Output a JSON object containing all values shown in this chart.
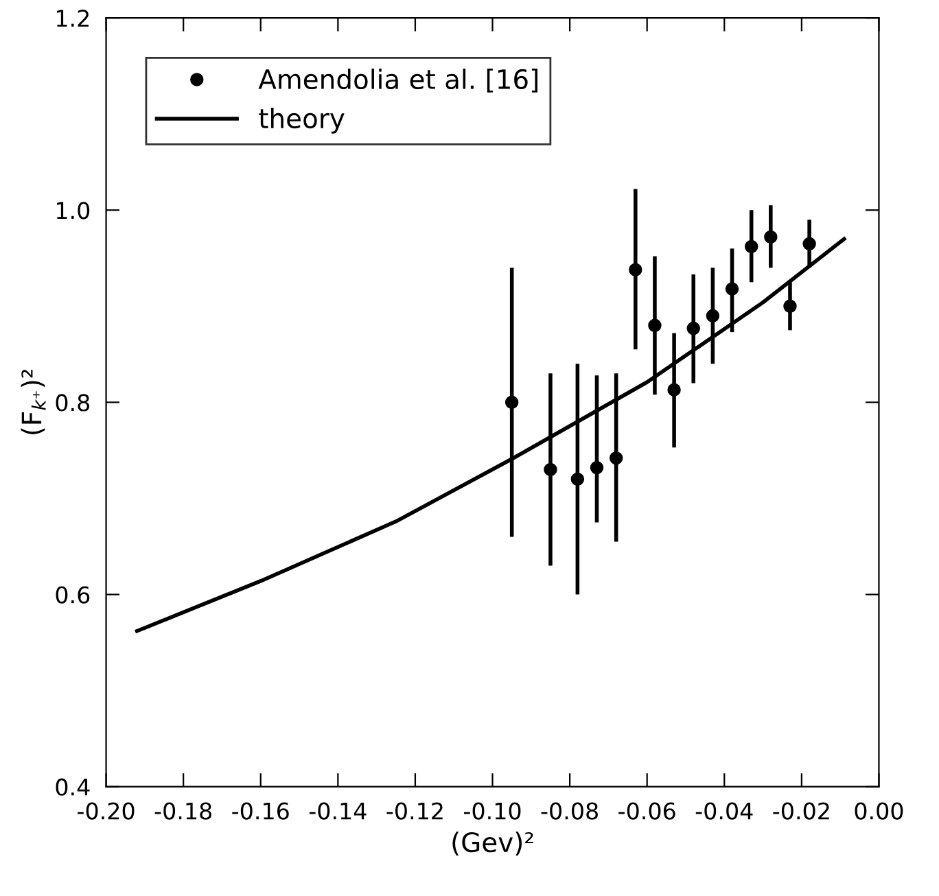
{
  "chart_data": {
    "type": "scatter",
    "xlabel": "(Gev)²",
    "ylabel": "(F$_{k⁺}$)²",
    "xlim": [
      -0.2,
      0.0
    ],
    "ylim": [
      0.4,
      1.2
    ],
    "xticks": [
      {
        "value": -0.2,
        "label": "-0.20"
      },
      {
        "value": -0.18,
        "label": "-0.18"
      },
      {
        "value": -0.16,
        "label": "-0.16"
      },
      {
        "value": -0.14,
        "label": "-0.14"
      },
      {
        "value": -0.12,
        "label": "-0.12"
      },
      {
        "value": -0.1,
        "label": "-0.10"
      },
      {
        "value": -0.08,
        "label": "-0.08"
      },
      {
        "value": -0.06,
        "label": "-0.06"
      },
      {
        "value": -0.04,
        "label": "-0.04"
      },
      {
        "value": -0.02,
        "label": "-0.02"
      },
      {
        "value": 0.0,
        "label": "0.00"
      }
    ],
    "yticks": [
      {
        "value": 0.4,
        "label": "0.4"
      },
      {
        "value": 0.6,
        "label": "0.6"
      },
      {
        "value": 0.8,
        "label": "0.8"
      },
      {
        "value": 1.0,
        "label": "1.0"
      },
      {
        "value": 1.2,
        "label": "1.2"
      }
    ],
    "grid": false,
    "legend": "top left",
    "series": [
      {
        "name": "Amendolia et al. [16]",
        "color": "#000000",
        "marker": "circle",
        "x": [
          -0.095,
          -0.085,
          -0.078,
          -0.073,
          -0.068,
          -0.063,
          -0.058,
          -0.053,
          -0.048,
          -0.043,
          -0.038,
          -0.033,
          -0.028,
          -0.023,
          -0.018
        ],
        "values": [
          0.8,
          0.73,
          0.72,
          0.732,
          0.742,
          0.938,
          0.88,
          0.813,
          0.877,
          0.89,
          0.918,
          0.962,
          0.972,
          0.9,
          0.965
        ],
        "errors": [
          [
            0.66,
            0.94
          ],
          [
            0.63,
            0.83
          ],
          [
            0.6,
            0.84
          ],
          [
            0.675,
            0.828
          ],
          [
            0.655,
            0.83
          ],
          [
            0.855,
            1.022
          ],
          [
            0.808,
            0.952
          ],
          [
            0.753,
            0.872
          ],
          [
            0.82,
            0.933
          ],
          [
            0.84,
            0.94
          ],
          [
            0.873,
            0.96
          ],
          [
            0.925,
            1.0
          ],
          [
            0.94,
            1.005
          ],
          [
            0.875,
            0.925
          ],
          [
            0.94,
            0.99
          ]
        ]
      },
      {
        "name": "theory",
        "type": "line",
        "color": "#000000",
        "line_style": "solid",
        "x": [
          -0.192,
          -0.16,
          -0.125,
          -0.095,
          -0.06,
          -0.03,
          -0.009
        ],
        "values": [
          0.562,
          0.614,
          0.676,
          0.741,
          0.821,
          0.904,
          0.97
        ]
      }
    ]
  }
}
